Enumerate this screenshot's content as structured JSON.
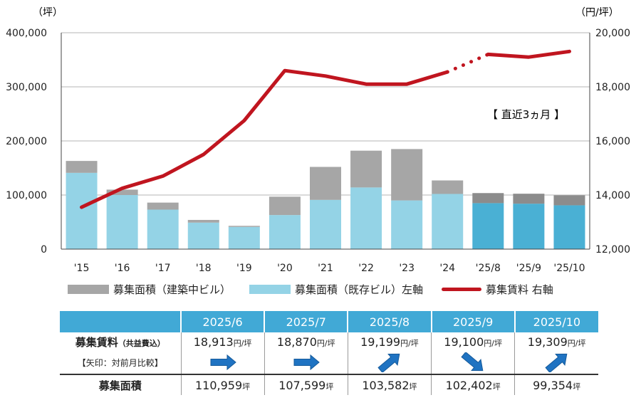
{
  "chart_data": {
    "type": "bar",
    "categories": [
      "'15",
      "'16",
      "'17",
      "'18",
      "'19",
      "'20",
      "'21",
      "'22",
      "'23",
      "'24",
      "'25/8",
      "'25/9",
      "'25/10"
    ],
    "series": [
      {
        "name": "募集面積（既存ビル）左軸",
        "type": "bar",
        "stack": "area",
        "axis": "left",
        "color": "#94d3e6",
        "values": [
          141000,
          100000,
          73000,
          49000,
          41000,
          63000,
          91000,
          114000,
          90000,
          102000,
          85000,
          84000,
          81000
        ]
      },
      {
        "name": "募集面積（建築中ビル）",
        "type": "bar",
        "stack": "area",
        "axis": "left",
        "color": "#a6a6a6",
        "values": [
          22000,
          10000,
          13000,
          5000,
          2000,
          34000,
          61000,
          68000,
          95000,
          25000,
          18600,
          18400,
          18400
        ]
      },
      {
        "name": "募集賃料 右軸",
        "type": "line",
        "axis": "right",
        "color": "#c0151f",
        "values": [
          13550,
          14250,
          14700,
          15500,
          16750,
          18600,
          18400,
          18100,
          18100,
          18550,
          19199,
          19100,
          19309
        ]
      }
    ],
    "highlight_colors": {
      "recent_bar": "#4ab0d4",
      "recent_bar_construction": "#8c8c8c"
    },
    "left_axis": {
      "unit": "（坪）",
      "ylim": [
        0,
        400000
      ],
      "ticks": [
        "0",
        "100,000",
        "200,000",
        "300,000",
        "400,000"
      ]
    },
    "right_axis": {
      "unit": "（円/坪）",
      "ylim": [
        12000,
        20000
      ],
      "ticks": [
        "12,000",
        "14,000",
        "16,000",
        "18,000",
        "20,000"
      ]
    },
    "annotation": "【 直近3ヵ月 】",
    "grid": true,
    "legend_placement": "bottom"
  },
  "legend": [
    {
      "label": "募集面積（建築中ビル）",
      "color": "#a6a6a6",
      "kind": "bar"
    },
    {
      "label": "募集面積（既存ビル）左軸",
      "color": "#94d3e6",
      "kind": "bar"
    },
    {
      "label": "募集賃料 右軸",
      "color": "#c0151f",
      "kind": "line"
    }
  ],
  "table": {
    "months": [
      "2025/6",
      "2025/7",
      "2025/8",
      "2025/9",
      "2025/10"
    ],
    "rent_label": "募集賃料",
    "rent_label_note": "（共益費込）",
    "rent_values": [
      "18,913",
      "18,870",
      "19,199",
      "19,100",
      "19,309"
    ],
    "rent_unit": "円/坪",
    "arrow_label": "【矢印：対前月比較】",
    "arrows": [
      "flat",
      "flat",
      "up",
      "down",
      "up"
    ],
    "arrow_color": "#1f73c2",
    "area_label": "募集面積",
    "area_values": [
      "110,959",
      "107,599",
      "103,582",
      "102,402",
      "99,354"
    ],
    "area_unit": "坪"
  }
}
